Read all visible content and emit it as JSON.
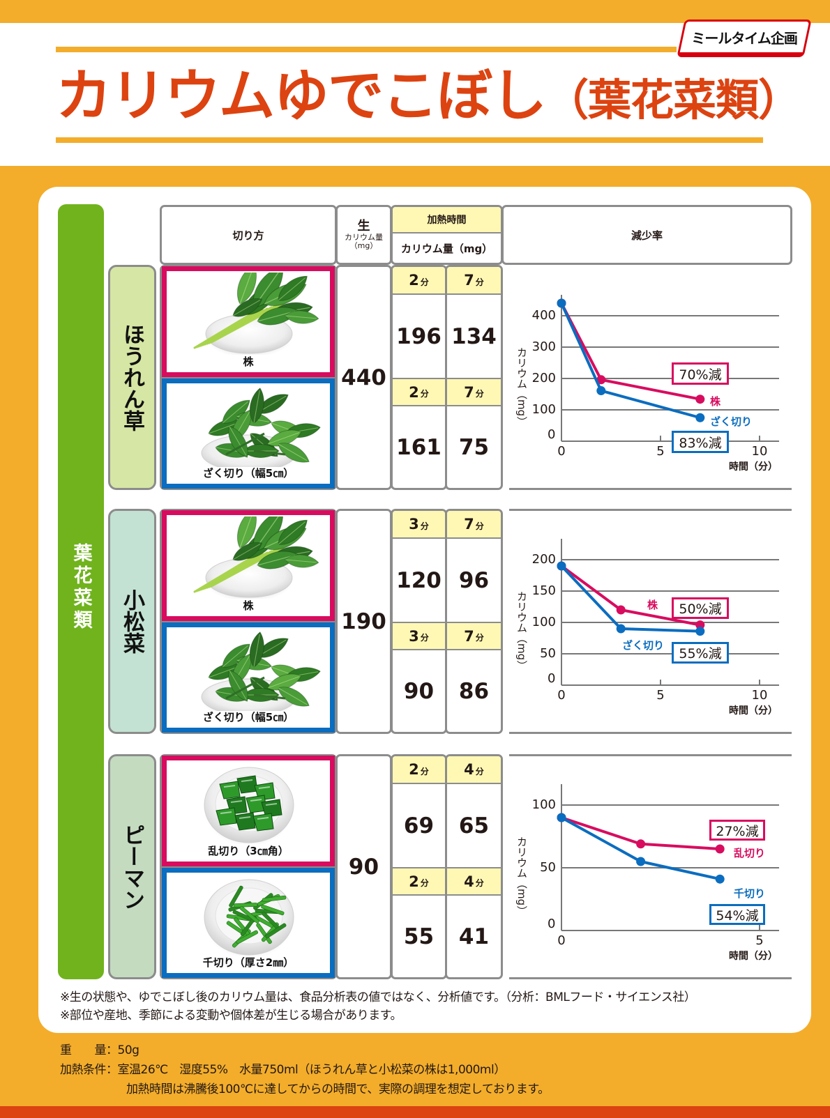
{
  "header": {
    "brand_logo": "ミールタイム企画",
    "title_main": "カリウムゆでこぼし",
    "title_sub": "（葉花菜類）"
  },
  "category": "葉花菜類",
  "table_header": {
    "cut": "切り方",
    "raw": "生",
    "raw_sub1": "カリウム量",
    "raw_sub2": "（mg）",
    "heat_time": "加熱時間",
    "potassium": "カリウム量（mg）",
    "reduction": "減少率"
  },
  "sections": [
    {
      "name": "ほうれん草",
      "label_color": "#d6e6a4",
      "raw": "440",
      "cuts": [
        {
          "label": "株",
          "photo": "spinach-bunch-photo",
          "times": [
            {
              "num": "2",
              "unit": "分",
              "value": "196"
            },
            {
              "num": "7",
              "unit": "分",
              "value": "134"
            }
          ]
        },
        {
          "label": "ざく切り（幅5㎝）",
          "photo": "spinach-chopped-photo",
          "times": [
            {
              "num": "2",
              "unit": "分",
              "value": "161"
            },
            {
              "num": "7",
              "unit": "分",
              "value": "75"
            }
          ]
        }
      ]
    },
    {
      "name": "小松菜",
      "label_color": "#c3e2d3",
      "raw": "190",
      "cuts": [
        {
          "label": "株",
          "photo": "komatsuna-bunch-photo",
          "times": [
            {
              "num": "3",
              "unit": "分",
              "value": "120"
            },
            {
              "num": "7",
              "unit": "分",
              "value": "96"
            }
          ]
        },
        {
          "label": "ざく切り（幅5㎝）",
          "photo": "komatsuna-chopped-photo",
          "times": [
            {
              "num": "3",
              "unit": "分",
              "value": "90"
            },
            {
              "num": "7",
              "unit": "分",
              "value": "86"
            }
          ]
        }
      ]
    },
    {
      "name": "ピーマン",
      "label_color": "#c4dbc0",
      "raw": "90",
      "cuts": [
        {
          "label": "乱切り（3㎝角）",
          "photo": "pepper-chunks-photo",
          "times": [
            {
              "num": "2",
              "unit": "分",
              "value": "69"
            },
            {
              "num": "4",
              "unit": "分",
              "value": "65"
            }
          ]
        },
        {
          "label": "千切り（厚さ2㎜）",
          "photo": "pepper-strips-photo",
          "times": [
            {
              "num": "2",
              "unit": "分",
              "value": "55"
            },
            {
              "num": "4",
              "unit": "分",
              "value": "41"
            }
          ]
        }
      ]
    }
  ],
  "notes": [
    "※生の状態や、ゆでこぼし後のカリウム量は、食品分析表の値ではなく、分析値です。（分析：BMLフード・サイエンス社）",
    "※部位や産地、季節による変動や個体差が生じる場合があります。"
  ],
  "conditions": {
    "weight": "重　　量：50g",
    "heat_line1": "加熱条件：室温26℃　湿度55%　水量750ml（ほうれん草と小松菜の株は1,000ml）",
    "heat_line2": "加熱時間は沸騰後100℃に達してからの時間で、実際の調理を想定しております。"
  },
  "colors": {
    "background_orange": "#f3ad2b",
    "title_red": "#dc4311",
    "category_green": "#70b31d",
    "series_pink": "#d80c5f",
    "series_blue": "#0b6dbf",
    "time_header_yellow": "#fff8b4",
    "border_grey": "#8c8c8c"
  },
  "chart_data": [
    {
      "type": "line",
      "title": "ほうれん草 減少率",
      "xlabel": "時間（分）",
      "ylabel": "カリウム（mg）",
      "xticks": [
        0,
        5,
        10
      ],
      "yticks": [
        0,
        100,
        200,
        300,
        400
      ],
      "xlim": [
        0,
        11
      ],
      "ylim": [
        0,
        460
      ],
      "grid": true,
      "series": [
        {
          "name": "株",
          "color": "#d80c5f",
          "x": [
            0,
            2,
            7
          ],
          "y": [
            440,
            196,
            134
          ],
          "reduction_label": "70%減"
        },
        {
          "name": "ざく切り",
          "color": "#0b6dbf",
          "x": [
            0,
            2,
            7
          ],
          "y": [
            440,
            161,
            75
          ],
          "reduction_label": "83%減"
        }
      ]
    },
    {
      "type": "line",
      "title": "小松菜 減少率",
      "xlabel": "時間（分）",
      "ylabel": "カリウム（mg）",
      "xticks": [
        0,
        5,
        10
      ],
      "yticks": [
        0,
        50,
        100,
        150,
        200
      ],
      "xlim": [
        0,
        11
      ],
      "ylim": [
        0,
        230
      ],
      "grid": true,
      "series": [
        {
          "name": "株",
          "color": "#d80c5f",
          "x": [
            0,
            3,
            7
          ],
          "y": [
            190,
            120,
            96
          ],
          "reduction_label": "50%減"
        },
        {
          "name": "ざく切り",
          "color": "#0b6dbf",
          "x": [
            0,
            3,
            7
          ],
          "y": [
            190,
            90,
            86
          ],
          "reduction_label": "55%減"
        }
      ]
    },
    {
      "type": "line",
      "title": "ピーマン 減少率",
      "xlabel": "時間（分）",
      "ylabel": "カリウム（mg）",
      "xticks": [
        0,
        5
      ],
      "yticks": [
        0,
        50,
        100
      ],
      "xlim": [
        0,
        5.5
      ],
      "ylim": [
        0,
        115
      ],
      "grid": true,
      "series": [
        {
          "name": "乱切り",
          "color": "#d80c5f",
          "x": [
            0,
            2,
            4
          ],
          "y": [
            90,
            69,
            65
          ],
          "reduction_label": "27%減"
        },
        {
          "name": "千切り",
          "color": "#0b6dbf",
          "x": [
            0,
            2,
            4
          ],
          "y": [
            90,
            55,
            41
          ],
          "reduction_label": "54%減"
        }
      ]
    }
  ]
}
